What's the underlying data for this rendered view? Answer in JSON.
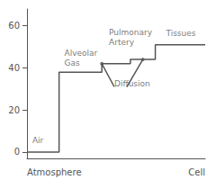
{
  "chart_data": {
    "type": "line",
    "xlabels": [
      "Atmosphere",
      "Cell"
    ],
    "xlim": [
      0,
      10
    ],
    "ylim": [
      -3,
      68
    ],
    "yticks": [
      0,
      20,
      40,
      60
    ],
    "tick_labels": "y",
    "grid": false,
    "color": "#555555",
    "series": [
      {
        "type": "line",
        "x": [
          0.0,
          1.8,
          1.8,
          4.2,
          4.2,
          5.8,
          5.8,
          7.2,
          7.2,
          10.0
        ],
        "values": [
          0,
          0,
          38,
          38,
          42,
          42,
          44,
          44,
          51,
          51
        ]
      },
      {
        "type": "line",
        "x": [
          4.9,
          4.2
        ],
        "values": [
          31,
          42
        ]
      },
      {
        "type": "line",
        "x": [
          5.6,
          6.5
        ],
        "values": [
          31,
          44
        ]
      },
      {
        "type": "scatter",
        "x": [
          4.2,
          6.5
        ],
        "values": [
          42,
          44
        ]
      }
    ],
    "annotations": [
      {
        "text": "Air",
        "x": 0.3,
        "y": 3
      },
      {
        "text": "Alveolar\nGas",
        "x": 2.1,
        "y": 40
      },
      {
        "text": "Pulmonary\nArtery",
        "x": 4.6,
        "y": 50
      },
      {
        "text": "Diffusion",
        "x": 4.9,
        "y": 30
      },
      {
        "text": "Tissues",
        "x": 7.8,
        "y": 54
      }
    ]
  }
}
